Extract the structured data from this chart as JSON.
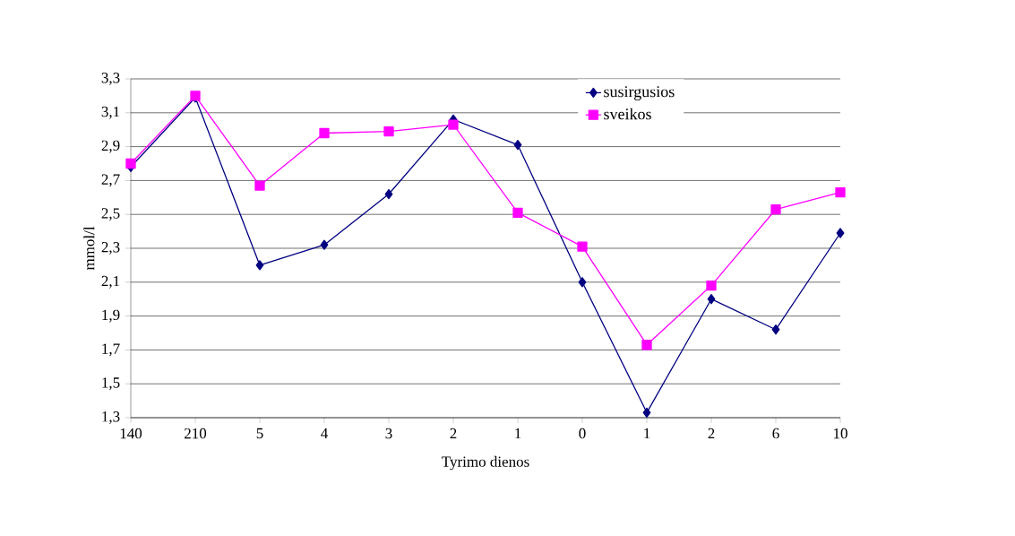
{
  "chart_data": {
    "type": "line",
    "xlabel": "Tyrimo dienos",
    "ylabel": "mmol/l",
    "categories": [
      "140",
      "210",
      "5",
      "4",
      "3",
      "2",
      "1",
      "0",
      "1",
      "2",
      "6",
      "10"
    ],
    "series": [
      {
        "name": "susirgusios",
        "color": "#000080",
        "marker": "diamond",
        "values": [
          2.78,
          3.19,
          2.2,
          2.32,
          2.62,
          3.06,
          2.91,
          2.1,
          1.33,
          2.0,
          1.82,
          2.39
        ]
      },
      {
        "name": "sveikos",
        "color": "#ff00ff",
        "marker": "square",
        "values": [
          2.8,
          3.2,
          2.67,
          2.98,
          2.99,
          3.03,
          2.51,
          2.31,
          1.73,
          2.08,
          2.53,
          2.63
        ]
      }
    ],
    "ylim": [
      1.3,
      3.3
    ],
    "yticks": [
      {
        "value": 1.3,
        "label": "1,3"
      },
      {
        "value": 1.5,
        "label": "1,5"
      },
      {
        "value": 1.7,
        "label": "1,7"
      },
      {
        "value": 1.9,
        "label": "1,9"
      },
      {
        "value": 2.1,
        "label": "2,1"
      },
      {
        "value": 2.3,
        "label": "2,3"
      },
      {
        "value": 2.5,
        "label": "2,5"
      },
      {
        "value": 2.7,
        "label": "2,7"
      },
      {
        "value": 2.9,
        "label": "2,9"
      },
      {
        "value": 3.1,
        "label": "3,1"
      },
      {
        "value": 3.3,
        "label": "3,3"
      }
    ],
    "grid": "y",
    "legend": "top right",
    "line_style": "solid"
  }
}
